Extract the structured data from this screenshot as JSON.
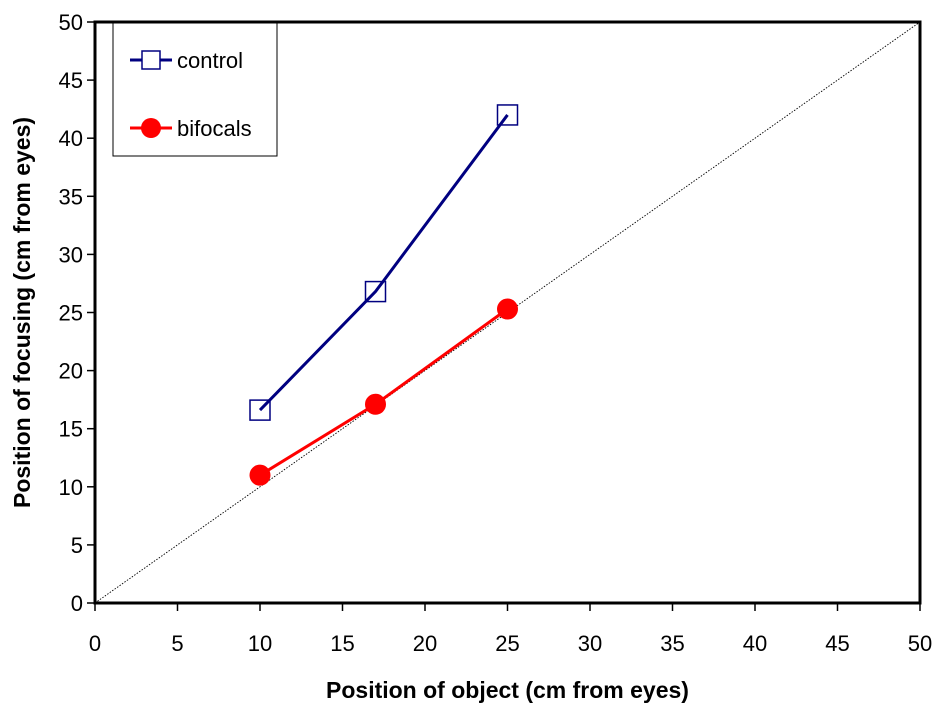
{
  "chart_data": {
    "type": "line",
    "title": "",
    "xlabel": "Position of object (cm from eyes)",
    "ylabel": "Position of focusing (cm from eyes)",
    "xlim": [
      0,
      50
    ],
    "ylim": [
      0,
      50
    ],
    "xticks": [
      0,
      5,
      10,
      15,
      20,
      25,
      30,
      35,
      40,
      45,
      50
    ],
    "yticks": [
      0,
      5,
      10,
      15,
      20,
      25,
      30,
      35,
      40,
      45,
      50
    ],
    "grid": false,
    "legend_position": "top-left",
    "reference_line": {
      "style": "dotted",
      "from": [
        0,
        0
      ],
      "to": [
        50,
        50
      ],
      "color": "#000000"
    },
    "series": [
      {
        "name": "control",
        "marker": "open-square",
        "color": "#000080",
        "points": [
          {
            "x": 10,
            "y": 16.6
          },
          {
            "x": 17,
            "y": 26.8
          },
          {
            "x": 25,
            "y": 42.0
          }
        ]
      },
      {
        "name": "bifocals",
        "marker": "filled-circle",
        "color": "#ff0000",
        "points": [
          {
            "x": 10,
            "y": 11.0
          },
          {
            "x": 17,
            "y": 17.1
          },
          {
            "x": 25,
            "y": 25.3
          }
        ]
      }
    ]
  }
}
